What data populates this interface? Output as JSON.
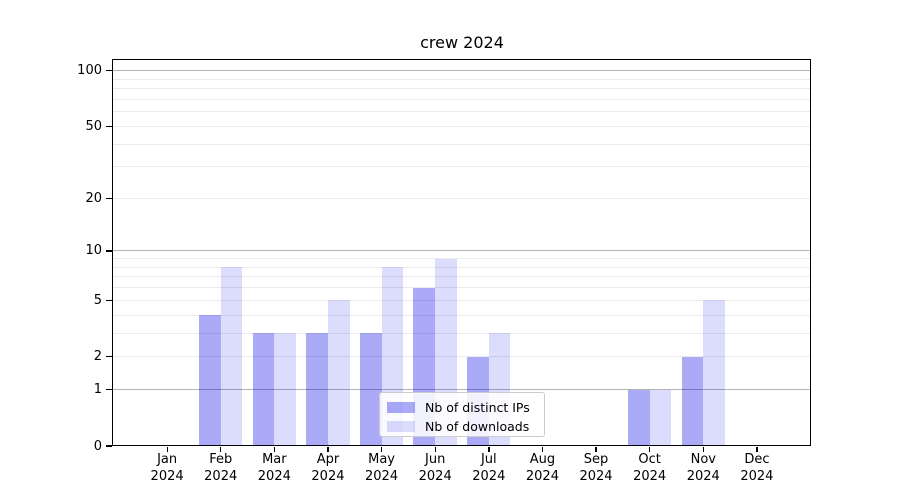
{
  "title": "crew 2024",
  "chart_data": {
    "type": "bar",
    "title": "crew 2024",
    "categories": [
      "Jan 2024",
      "Feb 2024",
      "Mar 2024",
      "Apr 2024",
      "May 2024",
      "Jun 2024",
      "Jul 2024",
      "Aug 2024",
      "Sep 2024",
      "Oct 2024",
      "Nov 2024",
      "Dec 2024"
    ],
    "series": [
      {
        "name": "Nb of distinct IPs",
        "values": [
          0,
          4,
          3,
          3,
          3,
          6,
          2,
          0,
          0,
          1,
          2,
          0
        ],
        "color": "rgba(0,0,232,0.335)"
      },
      {
        "name": "Nb of downloads",
        "values": [
          0,
          8,
          3,
          5,
          8,
          9,
          3,
          0,
          0,
          1,
          5,
          0
        ],
        "color": "rgba(0,0,232,0.138)"
      }
    ],
    "yscale": "log1p",
    "yticks": [
      0,
      1,
      2,
      5,
      10,
      20,
      50,
      100
    ],
    "grid_major": [
      1,
      10,
      100
    ],
    "grid_minor": [
      2,
      3,
      4,
      5,
      6,
      7,
      8,
      9,
      20,
      30,
      40,
      50,
      60,
      70,
      80,
      90
    ],
    "ylim_top": 114,
    "xlabel": "",
    "ylabel": "",
    "grid": true,
    "legend_position": "lower center"
  },
  "colors": {
    "background": "#ffffff",
    "spine": "#000000",
    "text": "#000000",
    "grid_major": "#b3b3b3",
    "grid_minor": "#eaeaea",
    "legend_border": "#cccccc",
    "legend_bg": "rgba(255,255,255,0.85)"
  }
}
